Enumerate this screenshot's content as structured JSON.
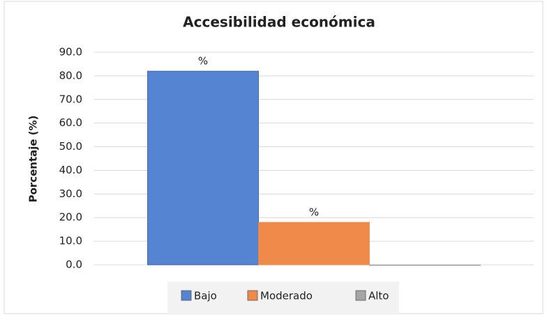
{
  "chart_data": {
    "type": "bar",
    "title": "Accesibilidad económica",
    "y_label": "Porcentaje (%)",
    "categories": [
      null
    ],
    "series": [
      {
        "name": "Bajo",
        "color": "#5584d2",
        "values": [
          82
        ],
        "value_labels": [
          "%"
        ]
      },
      {
        "name": "Moderado",
        "color": "#ef8a4a",
        "values": [
          18
        ],
        "value_labels": [
          "%"
        ]
      },
      {
        "name": "Alto",
        "color": "#a5a5a5",
        "values": [
          0
        ]
      }
    ],
    "ylim": [
      0,
      90
    ],
    "yticks": [
      {
        "value": 0,
        "label": "0.0"
      },
      {
        "value": 10,
        "label": "10.0"
      },
      {
        "value": 20,
        "label": "20.0"
      },
      {
        "value": 30,
        "label": "30.0"
      },
      {
        "value": 40,
        "label": "40.0"
      },
      {
        "value": 50,
        "label": "50.0"
      },
      {
        "value": 60,
        "label": "60.0"
      },
      {
        "value": 70,
        "label": "70.0"
      },
      {
        "value": 80,
        "label": "80.0"
      },
      {
        "value": 90,
        "label": "90.0"
      }
    ],
    "grid": true,
    "legend": "bottom"
  }
}
